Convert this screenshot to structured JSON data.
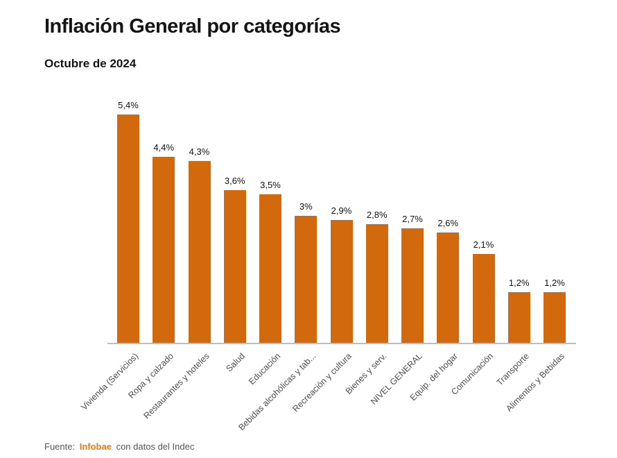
{
  "header": {
    "title": "Inflación General por categorías",
    "subtitle": "Octubre de 2024"
  },
  "footer": {
    "prefix": "Fuente:",
    "brand": "Infobae",
    "suffix": "con datos del Indec"
  },
  "colors": {
    "bar": "#d2690d",
    "brand_orange": "#e87610",
    "axis_line": "#bdbdbd",
    "title_text": "#151515",
    "axis_label_text": "#4d4d4d",
    "footer_text": "#555555"
  },
  "chart_data": {
    "type": "bar",
    "title": "Inflación General por categorías",
    "subtitle": "Octubre de 2024",
    "categories": [
      "Vivienda (Servicios)",
      "Ropa y calzado",
      "Restaurantes y hoteles",
      "Salud",
      "Educación",
      "Bebidas alcohólicas y tab...",
      "Recreación y cultura",
      "Bienes y serv.",
      "NIVEL GENERAL",
      "Equip. del hogar",
      "Comunicación",
      "Transporte",
      "Alimentos y Bebidas"
    ],
    "values": [
      5.4,
      4.4,
      4.3,
      3.6,
      3.5,
      3.0,
      2.9,
      2.8,
      2.7,
      2.6,
      2.1,
      1.2,
      1.2
    ],
    "value_labels": [
      "5,4%",
      "4,4%",
      "4,3%",
      "3,6%",
      "3,5%",
      "3%",
      "2,9%",
      "2,8%",
      "2,7%",
      "2,6%",
      "2,1%",
      "1,2%",
      "1,2%"
    ],
    "xlabel": "",
    "ylabel": "",
    "ylim": [
      0,
      5.5
    ],
    "grid": false,
    "legend": false,
    "bar_color": "#d2690d",
    "value_labels_position": "above-bars",
    "x_tick_rotation": -45
  }
}
